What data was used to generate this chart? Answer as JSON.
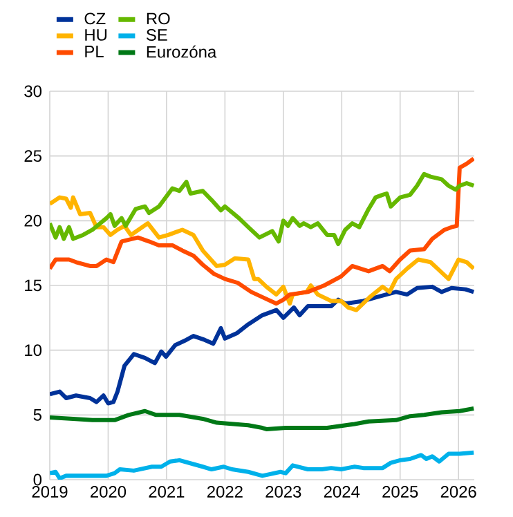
{
  "chart_data": {
    "type": "line",
    "xlim": [
      2019,
      2026.27
    ],
    "xticks": [
      2019,
      2020,
      2021,
      2022,
      2023,
      2024,
      2025,
      2026
    ],
    "ylim": [
      0,
      30
    ],
    "yticks": [
      0,
      5,
      10,
      15,
      20,
      25,
      30
    ],
    "grid": true,
    "legend": "top left",
    "series": [
      {
        "name": "CZ",
        "color": "#003299",
        "x": [
          2019.0,
          2019.17,
          2019.28,
          2019.45,
          2019.69,
          2019.8,
          2019.92,
          2020.0,
          2020.09,
          2020.16,
          2020.28,
          2020.44,
          2020.63,
          2020.8,
          2020.91,
          2020.99,
          2021.15,
          2021.34,
          2021.46,
          2021.65,
          2021.8,
          2021.93,
          2022.0,
          2022.2,
          2022.4,
          2022.64,
          2022.88,
          2023.0,
          2023.18,
          2023.28,
          2023.42,
          2023.82,
          2023.94,
          2024.06,
          2024.37,
          2024.6,
          2024.93,
          2025.12,
          2025.29,
          2025.55,
          2025.71,
          2025.88,
          2026.12,
          2026.26
        ],
        "values": [
          6.6,
          6.8,
          6.3,
          6.5,
          6.3,
          6.0,
          6.5,
          5.9,
          6.0,
          6.8,
          8.8,
          9.7,
          9.4,
          9.0,
          9.9,
          9.5,
          10.4,
          10.8,
          11.1,
          10.8,
          10.5,
          11.7,
          10.9,
          11.3,
          12.0,
          12.7,
          13.1,
          12.5,
          13.3,
          12.7,
          13.4,
          13.4,
          13.9,
          13.6,
          13.8,
          14.1,
          14.5,
          14.3,
          14.8,
          14.9,
          14.5,
          14.8,
          14.7,
          14.5
        ]
      },
      {
        "name": "HU",
        "color": "#ffb400",
        "x": [
          2019.0,
          2019.17,
          2019.28,
          2019.36,
          2019.4,
          2019.52,
          2019.69,
          2019.8,
          2019.92,
          2020.04,
          2020.16,
          2020.28,
          2020.39,
          2020.68,
          2020.87,
          2021.03,
          2021.27,
          2021.46,
          2021.62,
          2021.86,
          2022.0,
          2022.17,
          2022.4,
          2022.5,
          2022.57,
          2022.71,
          2022.88,
          2023.0,
          2023.11,
          2023.16,
          2023.4,
          2023.47,
          2023.59,
          2023.82,
          2023.99,
          2024.11,
          2024.25,
          2024.48,
          2024.7,
          2024.82,
          2024.93,
          2025.12,
          2025.31,
          2025.52,
          2025.64,
          2025.83,
          2026.0,
          2026.14,
          2026.26
        ],
        "values": [
          21.3,
          21.8,
          21.7,
          21.0,
          21.8,
          20.5,
          20.6,
          19.5,
          19.5,
          18.9,
          19.3,
          19.6,
          18.9,
          19.8,
          18.7,
          18.9,
          19.3,
          18.9,
          17.7,
          16.5,
          16.6,
          17.1,
          17.0,
          15.5,
          15.5,
          14.9,
          14.3,
          14.9,
          13.6,
          14.3,
          14.5,
          15.0,
          14.3,
          13.8,
          13.8,
          13.3,
          13.1,
          14.1,
          14.9,
          14.5,
          15.5,
          16.3,
          17.0,
          16.8,
          16.3,
          15.5,
          17.0,
          16.8,
          16.3
        ]
      },
      {
        "name": "PL",
        "color": "#ff4b00",
        "x": [
          2019.0,
          2019.1,
          2019.33,
          2019.45,
          2019.69,
          2019.8,
          2019.97,
          2020.09,
          2020.23,
          2020.51,
          2020.7,
          2020.87,
          2021.1,
          2021.27,
          2021.46,
          2021.62,
          2021.81,
          2022.0,
          2022.22,
          2022.45,
          2022.64,
          2022.88,
          2023.0,
          2023.11,
          2023.42,
          2023.7,
          2023.99,
          2024.18,
          2024.46,
          2024.7,
          2024.82,
          2025.0,
          2025.17,
          2025.41,
          2025.55,
          2025.76,
          2025.88,
          2025.97,
          2026.02,
          2026.14,
          2026.26
        ],
        "values": [
          16.3,
          17.0,
          17.0,
          16.8,
          16.5,
          16.5,
          17.0,
          16.8,
          18.4,
          18.7,
          18.4,
          18.1,
          18.1,
          17.7,
          17.3,
          16.6,
          15.9,
          15.5,
          15.2,
          14.5,
          14.1,
          13.6,
          13.9,
          14.3,
          14.5,
          15.0,
          15.7,
          16.5,
          16.1,
          16.5,
          16.1,
          17.0,
          17.7,
          17.8,
          18.6,
          19.3,
          19.5,
          19.6,
          24.1,
          24.4,
          24.8
        ]
      },
      {
        "name": "RO",
        "color": "#65b800",
        "x": [
          2019.0,
          2019.1,
          2019.17,
          2019.24,
          2019.33,
          2019.4,
          2019.57,
          2019.73,
          2019.97,
          2020.04,
          2020.11,
          2020.23,
          2020.3,
          2020.47,
          2020.63,
          2020.7,
          2020.87,
          2021.1,
          2021.22,
          2021.34,
          2021.41,
          2021.62,
          2021.77,
          2021.93,
          2022.0,
          2022.24,
          2022.4,
          2022.59,
          2022.81,
          2022.92,
          2023.0,
          2023.08,
          2023.16,
          2023.28,
          2023.35,
          2023.47,
          2023.59,
          2023.75,
          2023.87,
          2023.94,
          2024.06,
          2024.18,
          2024.3,
          2024.46,
          2024.58,
          2024.7,
          2024.77,
          2024.84,
          2025.0,
          2025.17,
          2025.29,
          2025.41,
          2025.52,
          2025.71,
          2025.83,
          2025.95,
          2026.02,
          2026.14,
          2026.26
        ],
        "values": [
          19.8,
          18.7,
          19.5,
          18.6,
          19.5,
          18.6,
          18.9,
          19.3,
          20.2,
          20.5,
          19.6,
          20.2,
          19.6,
          20.9,
          21.1,
          20.6,
          21.1,
          22.5,
          22.3,
          23.0,
          22.1,
          22.3,
          21.6,
          20.8,
          21.1,
          20.2,
          19.5,
          18.7,
          19.2,
          18.4,
          20.0,
          19.6,
          20.2,
          19.6,
          19.8,
          19.5,
          19.8,
          18.9,
          18.9,
          18.2,
          19.3,
          19.8,
          19.5,
          20.9,
          21.8,
          22.0,
          22.1,
          21.1,
          21.8,
          22.0,
          22.7,
          23.6,
          23.4,
          23.2,
          22.7,
          22.4,
          22.7,
          22.9,
          22.7
        ]
      },
      {
        "name": "SE",
        "color": "#00b1ea",
        "x": [
          2019.0,
          2019.1,
          2019.17,
          2019.28,
          2019.73,
          2019.97,
          2020.11,
          2020.2,
          2020.44,
          2020.75,
          2020.91,
          2021.06,
          2021.22,
          2021.46,
          2021.62,
          2021.77,
          2021.98,
          2022.12,
          2022.4,
          2022.64,
          2022.95,
          2023.04,
          2023.16,
          2023.42,
          2023.66,
          2023.82,
          2023.99,
          2024.22,
          2024.37,
          2024.7,
          2024.84,
          2025.0,
          2025.17,
          2025.36,
          2025.45,
          2025.55,
          2025.67,
          2025.83,
          2026.02,
          2026.26
        ],
        "values": [
          0.5,
          0.6,
          0.1,
          0.3,
          0.3,
          0.3,
          0.5,
          0.8,
          0.7,
          1.0,
          1.0,
          1.4,
          1.5,
          1.2,
          1.0,
          0.8,
          1.0,
          0.8,
          0.6,
          0.3,
          0.6,
          0.5,
          1.1,
          0.8,
          0.8,
          0.9,
          0.8,
          1.0,
          0.9,
          0.9,
          1.3,
          1.5,
          1.6,
          1.9,
          1.6,
          1.8,
          1.4,
          2.0,
          2.0,
          2.1
        ]
      },
      {
        "name": "Eurozóna",
        "color": "#007816",
        "x": [
          2019.0,
          2019.4,
          2019.73,
          2020.11,
          2020.35,
          2020.63,
          2020.82,
          2021.22,
          2021.62,
          2021.86,
          2022.4,
          2022.64,
          2022.71,
          2023.04,
          2023.75,
          2024.22,
          2024.46,
          2024.93,
          2025.17,
          2025.41,
          2025.71,
          2026.02,
          2026.26
        ],
        "values": [
          4.8,
          4.7,
          4.6,
          4.6,
          5.0,
          5.3,
          5.0,
          5.0,
          4.7,
          4.4,
          4.2,
          4.0,
          3.9,
          4.0,
          4.0,
          4.3,
          4.5,
          4.6,
          4.9,
          5.0,
          5.2,
          5.3,
          5.5
        ]
      }
    ]
  }
}
